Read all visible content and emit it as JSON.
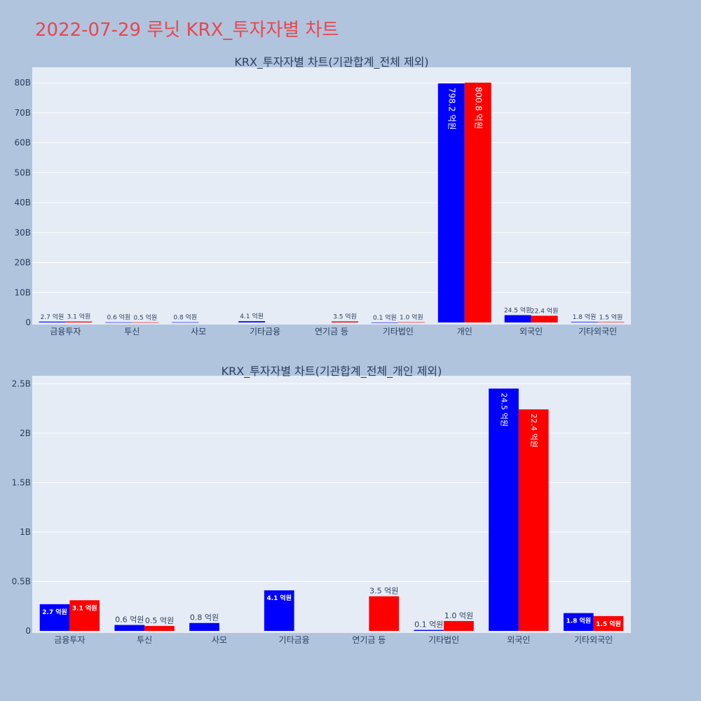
{
  "page_title": "2022-07-29 루닛 KRX_투자자별 차트",
  "colors": {
    "background": "#b0c4de",
    "plot_bg": "#e5ecf6",
    "title": "#e8474f",
    "series_a": "#0000ff",
    "series_b": "#ff0000"
  },
  "chart_data": [
    {
      "type": "bar",
      "title": "KRX_투자자별 차트(기관합계_전체 제외)",
      "categories": [
        "금융투자",
        "투신",
        "사모",
        "기타금융",
        "연기금 등",
        "기타법인",
        "개인",
        "외국인",
        "기타외국인"
      ],
      "series": [
        {
          "color": "#0000ff",
          "values": [
            0.27,
            0.06,
            0.08,
            0.41,
            0,
            0.01,
            79.82,
            2.45,
            0.18
          ],
          "labels": [
            "2.7 억원",
            "0.6 억원",
            "0.8 억원",
            "4.1 억원",
            "",
            "0.1 억원",
            "798.2 억원",
            "24.5 억원",
            "1.8 억원"
          ]
        },
        {
          "color": "#ff0000",
          "values": [
            0.31,
            0.05,
            0,
            0,
            0.35,
            0.1,
            80.08,
            2.24,
            0.15
          ],
          "labels": [
            "3.1 억원",
            "0.5 억원",
            "",
            "",
            "3.5 억원",
            "1.0 억원",
            "800.8 억원",
            "22.4 억원",
            "1.5 억원"
          ]
        }
      ],
      "y_ticks": [
        "0",
        "10B",
        "20B",
        "30B",
        "40B",
        "50B",
        "60B",
        "70B",
        "80B"
      ],
      "y_tick_values": [
        0,
        10,
        20,
        30,
        40,
        50,
        60,
        70,
        80
      ],
      "ylim": [
        0,
        85.2
      ],
      "grid": true
    },
    {
      "type": "bar",
      "title": "KRX_투자자별 차트(기관합계_전체_개인 제외)",
      "categories": [
        "금융투자",
        "투신",
        "사모",
        "기타금융",
        "연기금 등",
        "기타법인",
        "외국인",
        "기타외국인"
      ],
      "series": [
        {
          "color": "#0000ff",
          "values": [
            0.27,
            0.06,
            0.08,
            0.41,
            0,
            0.01,
            2.45,
            0.18
          ],
          "labels": [
            "2.7 억원",
            "0.6 억원",
            "0.8 억원",
            "4.1 억원",
            "",
            "0.1 억원",
            "24.5 억원",
            "1.8 억원"
          ]
        },
        {
          "color": "#ff0000",
          "values": [
            0.31,
            0.05,
            0,
            0,
            0.35,
            0.1,
            2.24,
            0.15
          ],
          "labels": [
            "3.1 억원",
            "0.5 억원",
            "",
            "",
            "3.5 억원",
            "1.0 억원",
            "22.4 억원",
            "1.5 억원"
          ]
        }
      ],
      "y_ticks": [
        "0",
        "0.5B",
        "1B",
        "1.5B",
        "2B",
        "2.5B"
      ],
      "y_tick_values": [
        0,
        0.5,
        1,
        1.5,
        2,
        2.5
      ],
      "ylim": [
        0,
        2.58
      ],
      "grid": true
    }
  ]
}
